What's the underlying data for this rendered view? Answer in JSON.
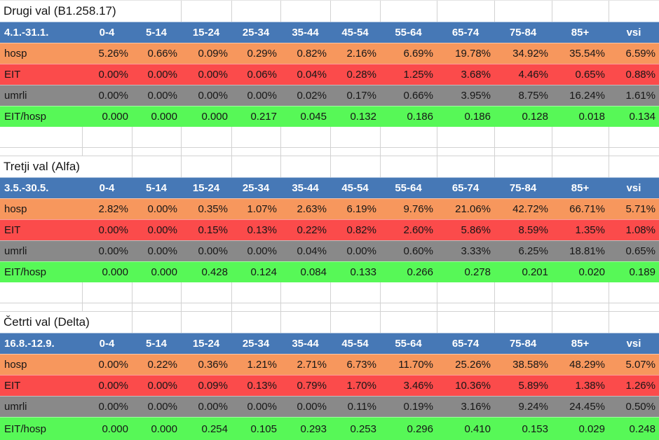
{
  "sheet": {
    "kind": "excel-table-screenshot"
  },
  "colors": {
    "header_blue": "#4678B6",
    "hosp_orange": "#F7975D",
    "eit_red": "#FB4B4B",
    "umrli_gray": "#898989",
    "ratio_green": "#57F857",
    "gridline": "#D2D2D2",
    "header_text": "#FFFFFF",
    "cell_text": "#161616"
  },
  "columns": [
    "0-4",
    "5-14",
    "15-24",
    "25-34",
    "35-44",
    "45-54",
    "55-64",
    "65-74",
    "75-84",
    "85+",
    "vsi"
  ],
  "tables": [
    {
      "title": "Drugi val (B1.258.17)",
      "title_span": 3,
      "period": "4.1.-31.1.",
      "rows": [
        {
          "label": "hosp",
          "type": "hosp",
          "values": [
            "5.26%",
            "0.66%",
            "0.09%",
            "0.29%",
            "0.82%",
            "2.16%",
            "6.69%",
            "19.78%",
            "34.92%",
            "35.54%",
            "6.59%"
          ]
        },
        {
          "label": "EIT",
          "type": "eit",
          "values": [
            "0.00%",
            "0.00%",
            "0.00%",
            "0.06%",
            "0.04%",
            "0.28%",
            "1.25%",
            "3.68%",
            "4.46%",
            "0.65%",
            "0.88%"
          ]
        },
        {
          "label": "umrli",
          "type": "umrli",
          "values": [
            "0.00%",
            "0.00%",
            "0.00%",
            "0.00%",
            "0.02%",
            "0.17%",
            "0.66%",
            "3.95%",
            "8.75%",
            "16.24%",
            "1.61%"
          ]
        },
        {
          "label": "EIT/hosp",
          "type": "ratio",
          "values": [
            "0.000",
            "0.000",
            "0.000",
            "0.217",
            "0.045",
            "0.132",
            "0.186",
            "0.186",
            "0.128",
            "0.018",
            "0.134"
          ]
        }
      ]
    },
    {
      "title": "Tretji val (Alfa)",
      "title_span": 2,
      "period": "3.5.-30.5.",
      "rows": [
        {
          "label": "hosp",
          "type": "hosp",
          "values": [
            "2.82%",
            "0.00%",
            "0.35%",
            "1.07%",
            "2.63%",
            "6.19%",
            "9.76%",
            "21.06%",
            "42.72%",
            "66.71%",
            "5.71%"
          ]
        },
        {
          "label": "EIT",
          "type": "eit",
          "values": [
            "0.00%",
            "0.00%",
            "0.15%",
            "0.13%",
            "0.22%",
            "0.82%",
            "2.60%",
            "5.86%",
            "8.59%",
            "1.35%",
            "1.08%"
          ]
        },
        {
          "label": "umrli",
          "type": "umrli",
          "values": [
            "0.00%",
            "0.00%",
            "0.00%",
            "0.00%",
            "0.04%",
            "0.00%",
            "0.60%",
            "3.33%",
            "6.25%",
            "18.81%",
            "0.65%"
          ]
        },
        {
          "label": "EIT/hosp",
          "type": "ratio",
          "values": [
            "0.000",
            "0.000",
            "0.428",
            "0.124",
            "0.084",
            "0.133",
            "0.266",
            "0.278",
            "0.201",
            "0.020",
            "0.189"
          ]
        }
      ]
    },
    {
      "title": "Četrti val (Delta)",
      "title_span": 2,
      "period": "16.8.-12.9.",
      "rows": [
        {
          "label": "hosp",
          "type": "hosp",
          "values": [
            "0.00%",
            "0.22%",
            "0.36%",
            "1.21%",
            "2.71%",
            "6.73%",
            "11.70%",
            "25.26%",
            "38.58%",
            "48.29%",
            "5.07%"
          ]
        },
        {
          "label": "EIT",
          "type": "eit",
          "values": [
            "0.00%",
            "0.00%",
            "0.09%",
            "0.13%",
            "0.79%",
            "1.70%",
            "3.46%",
            "10.36%",
            "5.89%",
            "1.38%",
            "1.26%"
          ]
        },
        {
          "label": "umrli",
          "type": "umrli",
          "values": [
            "0.00%",
            "0.00%",
            "0.00%",
            "0.00%",
            "0.00%",
            "0.11%",
            "0.19%",
            "3.16%",
            "9.24%",
            "24.45%",
            "0.50%"
          ]
        },
        {
          "label": "EIT/hosp",
          "type": "ratio",
          "values": [
            "0.000",
            "0.000",
            "0.254",
            "0.105",
            "0.293",
            "0.253",
            "0.296",
            "0.410",
            "0.153",
            "0.029",
            "0.248"
          ]
        }
      ]
    }
  ]
}
